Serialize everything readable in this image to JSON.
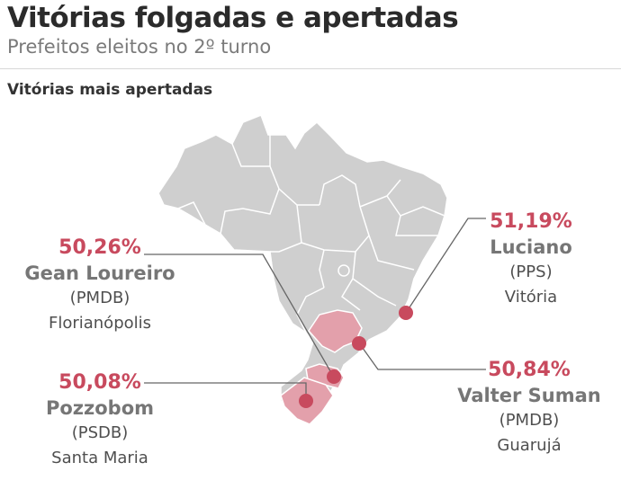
{
  "header": {
    "title": "Vitórias folgadas e apertadas",
    "subtitle": "Prefeitos eleitos no 2º turno"
  },
  "section": {
    "title": "Vitórias mais apertadas"
  },
  "colors": {
    "map_fill": "#cfcfcf",
    "highlight": "#e3a0ab",
    "accent": "#c84a5e",
    "border": "#ffffff"
  },
  "results": [
    {
      "id": "florianopolis",
      "percent": "50,26%",
      "name": "Gean Loureiro",
      "party": "(PMDB)",
      "city": "Florianópolis"
    },
    {
      "id": "santa-maria",
      "percent": "50,08%",
      "name": "Pozzobom",
      "party": "(PSDB)",
      "city": "Santa Maria"
    },
    {
      "id": "vitoria",
      "percent": "51,19%",
      "name": "Luciano",
      "party": "(PPS)",
      "city": "Vitória"
    },
    {
      "id": "guaruja",
      "percent": "50,84%",
      "name": "Valter Suman",
      "party": "(PMDB)",
      "city": "Guarujá"
    }
  ]
}
